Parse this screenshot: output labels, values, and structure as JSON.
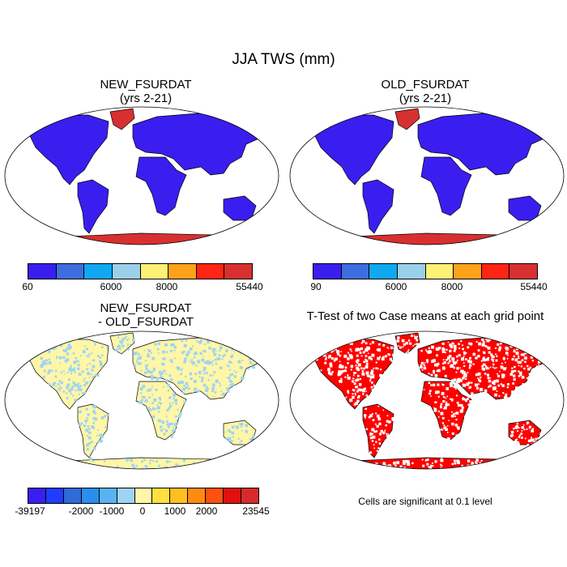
{
  "figure": {
    "title": "JJA TWS (mm)",
    "panels": [
      {
        "id": "new",
        "title_line1": "NEW_FSURDAT",
        "title_line2": "(yrs 2-21)"
      },
      {
        "id": "old",
        "title_line1": "OLD_FSURDAT",
        "title_line2": "(yrs 2-21)"
      },
      {
        "id": "diff",
        "title_line1": "NEW_FSURDAT",
        "title_line2": "- OLD_FSURDAT"
      },
      {
        "id": "ttest",
        "title_line1": "T-Test of two Case means at each grid point"
      }
    ],
    "note": "Cells are significant at 0.1 level"
  },
  "colorbars": {
    "new": {
      "colors": [
        "#3a1ef0",
        "#3d6ee0",
        "#10a8f0",
        "#9ad0ea",
        "#fff176",
        "#ffa21a",
        "#ff2414",
        "#d83030"
      ],
      "labels": [
        "60",
        "6000",
        "8000",
        "55440"
      ]
    },
    "old": {
      "colors": [
        "#3a1ef0",
        "#3d6ee0",
        "#10a8f0",
        "#9ad0ea",
        "#fff176",
        "#ffa21a",
        "#ff2414",
        "#d83030"
      ],
      "labels": [
        "90",
        "6000",
        "8000",
        "55440"
      ]
    },
    "diff": {
      "colors": [
        "#3a1ef0",
        "#1f3cff",
        "#2f6ad8",
        "#2a8ef0",
        "#58b4f0",
        "#9ed4f2",
        "#fff6a8",
        "#ffe040",
        "#ffbf20",
        "#ff8a10",
        "#ff5010",
        "#e01010",
        "#d82a2a"
      ],
      "labels": [
        "-39197",
        "-2000",
        "-1000",
        "0",
        "1000",
        "2000",
        "23545"
      ]
    }
  },
  "colors": {
    "land_low": "#3a1ef0",
    "land_high": "#d83030",
    "diff_base": "#fff6a8",
    "diff_spot": "#9ed4f2",
    "significant": "#ff0000"
  }
}
